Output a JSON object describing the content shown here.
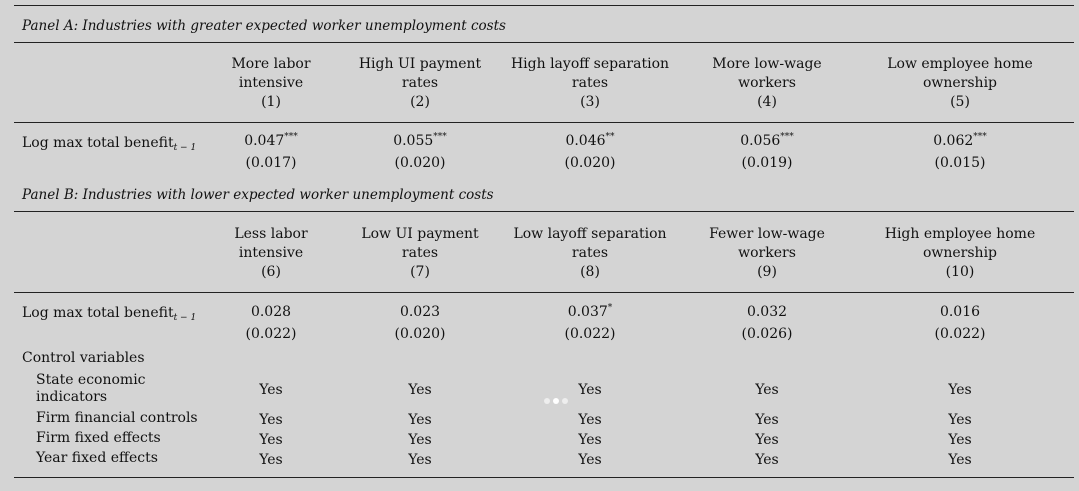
{
  "panel_a": {
    "title": "Panel A: Industries with greater expected worker unemployment costs",
    "columns": [
      {
        "line1": "More labor",
        "line2": "intensive",
        "num": "(1)"
      },
      {
        "line1": "High UI payment",
        "line2": "rates",
        "num": "(2)"
      },
      {
        "line1": "High layoff separation",
        "line2": "rates",
        "num": "(3)"
      },
      {
        "line1": "More low-wage",
        "line2": "workers",
        "num": "(4)"
      },
      {
        "line1": "Low employee home",
        "line2": "ownership",
        "num": "(5)"
      }
    ],
    "row_label": "Log max total benefit",
    "row_label_sub": "t − 1",
    "coefs": [
      {
        "value": "0.047",
        "stars": "***",
        "se": "(0.017)"
      },
      {
        "value": "0.055",
        "stars": "***",
        "se": "(0.020)"
      },
      {
        "value": "0.046",
        "stars": "**",
        "se": "(0.020)"
      },
      {
        "value": "0.056",
        "stars": "***",
        "se": "(0.019)"
      },
      {
        "value": "0.062",
        "stars": "***",
        "se": "(0.015)"
      }
    ]
  },
  "panel_b": {
    "title": "Panel B: Industries with lower expected worker unemployment costs",
    "columns": [
      {
        "line1": "Less labor",
        "line2": "intensive",
        "num": "(6)"
      },
      {
        "line1": "Low UI payment",
        "line2": "rates",
        "num": "(7)"
      },
      {
        "line1": "Low layoff separation",
        "line2": "rates",
        "num": "(8)"
      },
      {
        "line1": "Fewer low-wage",
        "line2": "workers",
        "num": "(9)"
      },
      {
        "line1": "High employee home",
        "line2": "ownership",
        "num": "(10)"
      }
    ],
    "row_label": "Log max total benefit",
    "row_label_sub": "t − 1",
    "coefs": [
      {
        "value": "0.028",
        "stars": "",
        "se": "(0.022)"
      },
      {
        "value": "0.023",
        "stars": "",
        "se": "(0.020)"
      },
      {
        "value": "0.037",
        "stars": "*",
        "se": "(0.022)"
      },
      {
        "value": "0.032",
        "stars": "",
        "se": "(0.026)"
      },
      {
        "value": "0.016",
        "stars": "",
        "se": "(0.022)"
      }
    ]
  },
  "controls": {
    "heading": "Control variables",
    "rows": [
      {
        "label_line1": "State economic",
        "label_line2": "indicators",
        "values": [
          "Yes",
          "Yes",
          "Yes",
          "Yes",
          "Yes"
        ]
      },
      {
        "label_line1": "Firm financial controls",
        "label_line2": "",
        "values": [
          "Yes",
          "Yes",
          "Yes",
          "Yes",
          "Yes"
        ]
      },
      {
        "label_line1": "Firm fixed effects",
        "label_line2": "",
        "values": [
          "Yes",
          "Yes",
          "Yes",
          "Yes",
          "Yes"
        ]
      },
      {
        "label_line1": "Year fixed effects",
        "label_line2": "",
        "values": [
          "Yes",
          "Yes",
          "Yes",
          "Yes",
          "Yes"
        ]
      }
    ]
  }
}
